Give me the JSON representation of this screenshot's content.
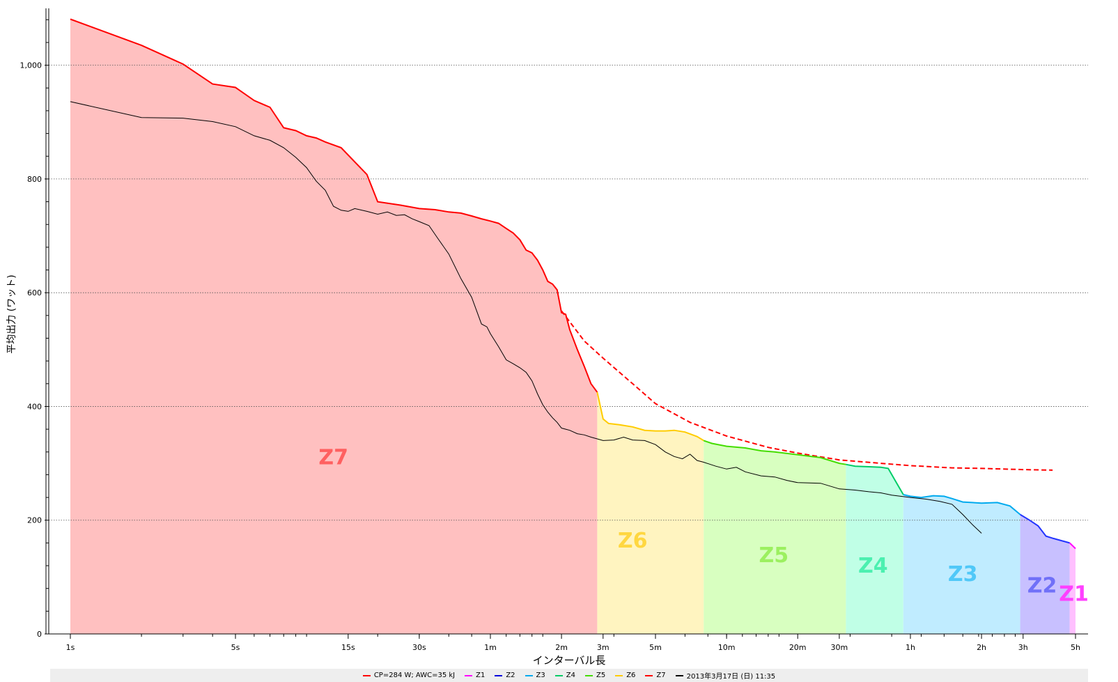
{
  "chart_data": {
    "type": "area",
    "xlabel": "インターバル長",
    "ylabel": "平均出力 (ワット)",
    "x_scale": "log",
    "xlim_seconds": [
      1,
      18000
    ],
    "ylim": [
      0,
      1100
    ],
    "x_ticks": [
      {
        "label": "1s",
        "seconds": 1
      },
      {
        "label": "5s",
        "seconds": 5
      },
      {
        "label": "15s",
        "seconds": 15
      },
      {
        "label": "30s",
        "seconds": 30
      },
      {
        "label": "1m",
        "seconds": 60
      },
      {
        "label": "2m",
        "seconds": 120
      },
      {
        "label": "3m",
        "seconds": 180
      },
      {
        "label": "5m",
        "seconds": 300
      },
      {
        "label": "10m",
        "seconds": 600
      },
      {
        "label": "20m",
        "seconds": 1200
      },
      {
        "label": "30m",
        "seconds": 1800
      },
      {
        "label": "1h",
        "seconds": 3600
      },
      {
        "label": "2h",
        "seconds": 7200
      },
      {
        "label": "3h",
        "seconds": 10800
      },
      {
        "label": "5h",
        "seconds": 18000
      }
    ],
    "y_ticks": [
      {
        "label": "0",
        "value": 0
      },
      {
        "label": "200",
        "value": 200
      },
      {
        "label": "400",
        "value": 400
      },
      {
        "label": "600",
        "value": 600
      },
      {
        "label": "800",
        "value": 800
      },
      {
        "label": "1,000",
        "value": 1000
      }
    ],
    "grid": "horizontal dotted",
    "legend_position": "bottom",
    "zones": [
      {
        "name": "Z7",
        "from_s": 1,
        "to_s": 170,
        "line_color": "#ff0000",
        "fill_color": "#ffc0c0",
        "label_color": "#ff6060",
        "label_at_s": 13,
        "label_at_w": 298
      },
      {
        "name": "Z6",
        "from_s": 170,
        "to_s": 480,
        "line_color": "#ffcc00",
        "fill_color": "#fff4c0",
        "label_color": "#ffd740",
        "label_at_s": 240,
        "label_at_w": 152
      },
      {
        "name": "Z5",
        "from_s": 480,
        "to_s": 1920,
        "line_color": "#44dd00",
        "fill_color": "#d8ffc0",
        "label_color": "#9cf060",
        "label_at_s": 950,
        "label_at_w": 126
      },
      {
        "name": "Z4",
        "from_s": 1920,
        "to_s": 3360,
        "line_color": "#00cc66",
        "fill_color": "#c0ffe6",
        "label_color": "#4cf0b0",
        "label_at_s": 2500,
        "label_at_w": 108
      },
      {
        "name": "Z3",
        "from_s": 3360,
        "to_s": 10500,
        "line_color": "#00aaee",
        "fill_color": "#c0ecff",
        "label_color": "#50c8f8",
        "label_at_s": 6000,
        "label_at_w": 93
      },
      {
        "name": "Z2",
        "from_s": 10500,
        "to_s": 17000,
        "line_color": "#2233ff",
        "fill_color": "#c8c0ff",
        "label_color": "#7070f8",
        "label_at_s": 13000,
        "label_at_w": 73
      },
      {
        "name": "Z1",
        "from_s": 17000,
        "to_s": 18100,
        "line_color": "#ff00ff",
        "fill_color": "#ffc0ff",
        "label_color": "#ff40ff",
        "label_at_s": 17700,
        "label_at_w": 58
      }
    ],
    "series": [
      {
        "name": "CP=284 W; AWC=35 kJ",
        "style": "dashed",
        "color": "#ff0000",
        "points": [
          [
            120,
            568
          ],
          [
            150,
            515
          ],
          [
            180,
            485
          ],
          [
            240,
            440
          ],
          [
            300,
            405
          ],
          [
            420,
            372
          ],
          [
            600,
            348
          ],
          [
            900,
            328
          ],
          [
            1200,
            318
          ],
          [
            1800,
            306
          ],
          [
            2700,
            300
          ],
          [
            3600,
            296
          ],
          [
            5400,
            292
          ],
          [
            7200,
            291
          ],
          [
            10800,
            289
          ],
          [
            14400,
            288
          ]
        ]
      },
      {
        "name": "best",
        "style": "solid-zoned",
        "color": "#ff0000",
        "points": [
          [
            1,
            1081
          ],
          [
            2,
            1035
          ],
          [
            3,
            1002
          ],
          [
            4,
            967
          ],
          [
            5,
            961
          ],
          [
            6,
            938
          ],
          [
            7,
            926
          ],
          [
            8,
            890
          ],
          [
            9,
            885
          ],
          [
            10,
            876
          ],
          [
            11,
            872
          ],
          [
            12,
            865
          ],
          [
            14,
            855
          ],
          [
            16,
            830
          ],
          [
            18,
            808
          ],
          [
            20,
            760
          ],
          [
            25,
            754
          ],
          [
            30,
            748
          ],
          [
            35,
            746
          ],
          [
            40,
            742
          ],
          [
            45,
            740
          ],
          [
            50,
            735
          ],
          [
            55,
            730
          ],
          [
            60,
            726
          ],
          [
            65,
            722
          ],
          [
            70,
            713
          ],
          [
            75,
            705
          ],
          [
            80,
            693
          ],
          [
            85,
            675
          ],
          [
            90,
            670
          ],
          [
            95,
            657
          ],
          [
            100,
            640
          ],
          [
            105,
            620
          ],
          [
            110,
            615
          ],
          [
            115,
            605
          ],
          [
            120,
            565
          ],
          [
            125,
            562
          ],
          [
            130,
            535
          ],
          [
            140,
            500
          ],
          [
            150,
            470
          ],
          [
            160,
            440
          ],
          [
            170,
            425
          ],
          [
            180,
            378
          ],
          [
            190,
            370
          ],
          [
            210,
            368
          ],
          [
            240,
            364
          ],
          [
            270,
            358
          ],
          [
            300,
            357
          ],
          [
            330,
            357
          ],
          [
            360,
            358
          ],
          [
            400,
            355
          ],
          [
            450,
            347
          ],
          [
            480,
            340
          ],
          [
            520,
            335
          ],
          [
            600,
            330
          ],
          [
            720,
            327
          ],
          [
            840,
            322
          ],
          [
            960,
            320
          ],
          [
            1200,
            315
          ],
          [
            1500,
            310
          ],
          [
            1800,
            300
          ],
          [
            1920,
            298
          ],
          [
            2100,
            295
          ],
          [
            2400,
            294
          ],
          [
            2700,
            293
          ],
          [
            2900,
            291
          ],
          [
            3100,
            270
          ],
          [
            3360,
            245
          ],
          [
            3600,
            242
          ],
          [
            4000,
            240
          ],
          [
            4500,
            243
          ],
          [
            5000,
            242
          ],
          [
            5400,
            238
          ],
          [
            6000,
            232
          ],
          [
            7200,
            230
          ],
          [
            8400,
            231
          ],
          [
            9500,
            225
          ],
          [
            10500,
            210
          ],
          [
            11500,
            200
          ],
          [
            12500,
            190
          ],
          [
            13500,
            172
          ],
          [
            14500,
            168
          ],
          [
            16000,
            163
          ],
          [
            17000,
            160
          ],
          [
            17500,
            155
          ],
          [
            18000,
            150
          ]
        ]
      },
      {
        "name": "2013年3月17日 (日) 11:35",
        "style": "solid",
        "color": "#000000",
        "points": [
          [
            1,
            936
          ],
          [
            2,
            908
          ],
          [
            3,
            907
          ],
          [
            4,
            901
          ],
          [
            5,
            892
          ],
          [
            6,
            876
          ],
          [
            7,
            868
          ],
          [
            8,
            855
          ],
          [
            9,
            838
          ],
          [
            10,
            820
          ],
          [
            11,
            796
          ],
          [
            12,
            780
          ],
          [
            13,
            752
          ],
          [
            14,
            745
          ],
          [
            15,
            743
          ],
          [
            16,
            748
          ],
          [
            18,
            743
          ],
          [
            20,
            738
          ],
          [
            22,
            742
          ],
          [
            24,
            736
          ],
          [
            26,
            737
          ],
          [
            28,
            730
          ],
          [
            30,
            725
          ],
          [
            33,
            718
          ],
          [
            36,
            695
          ],
          [
            40,
            668
          ],
          [
            45,
            625
          ],
          [
            50,
            592
          ],
          [
            55,
            545
          ],
          [
            58,
            540
          ],
          [
            60,
            528
          ],
          [
            65,
            505
          ],
          [
            70,
            482
          ],
          [
            75,
            475
          ],
          [
            80,
            468
          ],
          [
            85,
            460
          ],
          [
            90,
            445
          ],
          [
            95,
            422
          ],
          [
            100,
            403
          ],
          [
            105,
            390
          ],
          [
            110,
            380
          ],
          [
            115,
            372
          ],
          [
            120,
            362
          ],
          [
            125,
            360
          ],
          [
            130,
            358
          ],
          [
            140,
            352
          ],
          [
            150,
            350
          ],
          [
            160,
            346
          ],
          [
            170,
            343
          ],
          [
            180,
            340
          ],
          [
            200,
            341
          ],
          [
            220,
            346
          ],
          [
            240,
            341
          ],
          [
            270,
            340
          ],
          [
            300,
            333
          ],
          [
            330,
            320
          ],
          [
            360,
            312
          ],
          [
            390,
            308
          ],
          [
            420,
            316
          ],
          [
            450,
            305
          ],
          [
            480,
            302
          ],
          [
            540,
            295
          ],
          [
            600,
            290
          ],
          [
            660,
            293
          ],
          [
            720,
            285
          ],
          [
            840,
            278
          ],
          [
            960,
            276
          ],
          [
            1080,
            270
          ],
          [
            1200,
            266
          ],
          [
            1500,
            265
          ],
          [
            1800,
            255
          ],
          [
            2100,
            253
          ],
          [
            2400,
            250
          ],
          [
            2700,
            248
          ],
          [
            3000,
            244
          ],
          [
            3600,
            240
          ],
          [
            4200,
            237
          ],
          [
            4800,
            233
          ],
          [
            5400,
            228
          ],
          [
            6000,
            210
          ],
          [
            6600,
            192
          ],
          [
            7200,
            177
          ]
        ]
      }
    ],
    "legend": [
      {
        "label": "CP=284 W; AWC=35 kJ",
        "color": "#ff0000"
      },
      {
        "label": "Z1",
        "color": "#ff00ff"
      },
      {
        "label": "Z2",
        "color": "#0000dd"
      },
      {
        "label": "Z3",
        "color": "#00aaee"
      },
      {
        "label": "Z4",
        "color": "#00cc66"
      },
      {
        "label": "Z5",
        "color": "#44dd00"
      },
      {
        "label": "Z6",
        "color": "#ffcc00"
      },
      {
        "label": "Z7",
        "color": "#ff0000"
      },
      {
        "label": "2013年3月17日 (日) 11:35",
        "color": "#000000"
      }
    ]
  }
}
